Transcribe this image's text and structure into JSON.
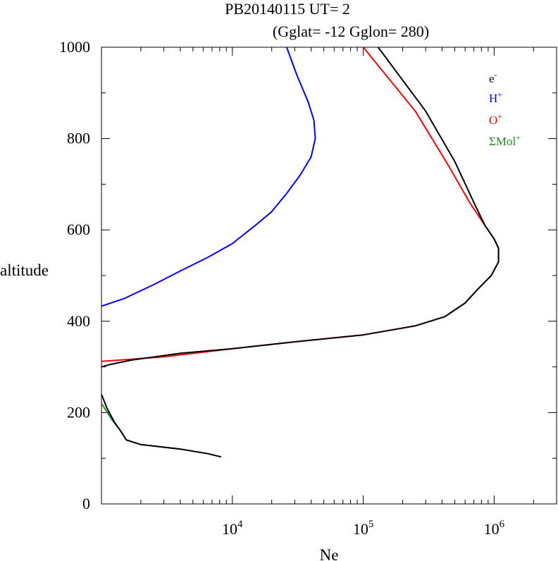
{
  "chart_data": {
    "type": "line",
    "title_line1": "PB20140115   UT=  2",
    "title_line2": "(Gglat= -12   Gglon=  280)",
    "xlabel": "Ne",
    "ylabel": "altitude",
    "x_scale": "log",
    "xlim": [
      1000,
      3000000
    ],
    "ylim": [
      0,
      1000
    ],
    "y_ticks": [
      "0",
      "200",
      "400",
      "600",
      "800",
      "1000"
    ],
    "x_ticks": [
      {
        "base": "10",
        "exp": "4",
        "value": 10000
      },
      {
        "base": "10",
        "exp": "5",
        "value": 100000
      },
      {
        "base": "10",
        "exp": "6",
        "value": 1000000
      }
    ],
    "legend_position": "top-right",
    "series": [
      {
        "name": "e-",
        "label_base": "e",
        "label_sup": "-",
        "color": "#000000",
        "points": [
          [
            8200,
            103
          ],
          [
            6500,
            110
          ],
          [
            4000,
            120
          ],
          [
            2000,
            130
          ],
          [
            1550,
            140
          ],
          [
            1400,
            160
          ],
          [
            1250,
            180
          ],
          [
            1100,
            210
          ],
          [
            1000,
            240
          ],
          [
            null,
            null
          ],
          [
            1000,
            300
          ],
          [
            1150,
            305
          ],
          [
            1700,
            315
          ],
          [
            4000,
            330
          ],
          [
            10000,
            340
          ],
          [
            30000,
            355
          ],
          [
            100000,
            370
          ],
          [
            250000,
            390
          ],
          [
            420000,
            410
          ],
          [
            600000,
            440
          ],
          [
            750000,
            470
          ],
          [
            950000,
            500
          ],
          [
            1080000,
            530
          ],
          [
            1080000,
            560
          ],
          [
            1000000,
            580
          ],
          [
            850000,
            610
          ],
          [
            700000,
            660
          ],
          [
            500000,
            750
          ],
          [
            300000,
            860
          ],
          [
            130000,
            1000
          ]
        ]
      },
      {
        "name": "H+",
        "label_base": "H",
        "label_sup": "+",
        "color": "#0000ff",
        "points": [
          [
            1000,
            433
          ],
          [
            1500,
            450
          ],
          [
            2500,
            480
          ],
          [
            4000,
            510
          ],
          [
            6500,
            540
          ],
          [
            10000,
            570
          ],
          [
            15000,
            610
          ],
          [
            20000,
            640
          ],
          [
            26000,
            680
          ],
          [
            33000,
            720
          ],
          [
            40000,
            760
          ],
          [
            43000,
            800
          ],
          [
            42000,
            840
          ],
          [
            38000,
            880
          ],
          [
            31000,
            940
          ],
          [
            26000,
            1000
          ]
        ]
      },
      {
        "name": "O+",
        "label_base": "O",
        "label_sup": "+",
        "color": "#ff0000",
        "points": [
          [
            1000,
            312
          ],
          [
            3000,
            322
          ],
          [
            10000,
            340
          ],
          [
            30000,
            355
          ],
          [
            100000,
            370
          ],
          [
            250000,
            390
          ],
          [
            420000,
            410
          ],
          [
            600000,
            440
          ],
          [
            750000,
            470
          ],
          [
            950000,
            500
          ],
          [
            1080000,
            530
          ],
          [
            1080000,
            560
          ],
          [
            1000000,
            580
          ],
          [
            850000,
            610
          ],
          [
            650000,
            660
          ],
          [
            450000,
            740
          ],
          [
            250000,
            860
          ],
          [
            100000,
            1000
          ]
        ]
      },
      {
        "name": "ΣMol+",
        "label_base": "ΣMol",
        "label_sup": "+",
        "color": "#228b22",
        "points": [
          [
            8200,
            103
          ],
          [
            6500,
            110
          ],
          [
            4000,
            120
          ],
          [
            2000,
            130
          ],
          [
            1550,
            140
          ],
          [
            1400,
            160
          ],
          [
            1200,
            185
          ],
          [
            1000,
            220
          ]
        ]
      }
    ]
  }
}
